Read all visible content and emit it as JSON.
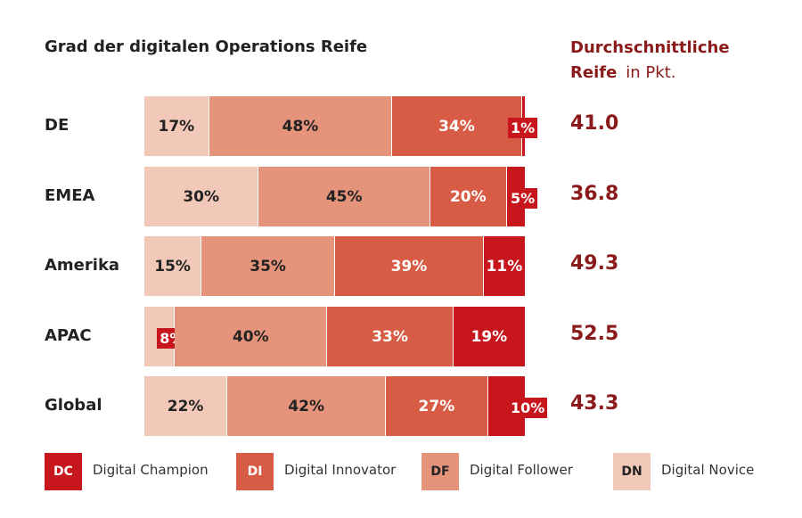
{
  "chart_data": {
    "type": "bar",
    "stacked": "100%",
    "orientation": "horizontal",
    "title": "Grad der digitalen Operations Reife",
    "right_column_title": "Durchschnittliche Reife",
    "right_column_unit": "in Pkt.",
    "categories": [
      "DE",
      "EMEA",
      "Amerika",
      "APAC",
      "Global"
    ],
    "series": [
      {
        "name": "Digital Novice",
        "abbr": "DN",
        "color": "#f2c9b9",
        "text_color": "#222222",
        "values": [
          17,
          30,
          15,
          8,
          22
        ]
      },
      {
        "name": "Digital Follower",
        "abbr": "DF",
        "color": "#e5937a",
        "text_color": "#222222",
        "values": [
          48,
          45,
          35,
          40,
          42
        ]
      },
      {
        "name": "Digital Innovator",
        "abbr": "DI",
        "color": "#d85c45",
        "text_color": "#ffffff",
        "values": [
          34,
          20,
          39,
          33,
          27
        ]
      },
      {
        "name": "Digital Champion",
        "abbr": "DC",
        "color": "#c8161d",
        "text_color": "#ffffff",
        "values": [
          1,
          5,
          11,
          19,
          10
        ]
      }
    ],
    "averages": [
      "41.0",
      "36.8",
      "49.3",
      "52.5",
      "43.3"
    ],
    "legend_position": "bottom",
    "grid": false
  }
}
